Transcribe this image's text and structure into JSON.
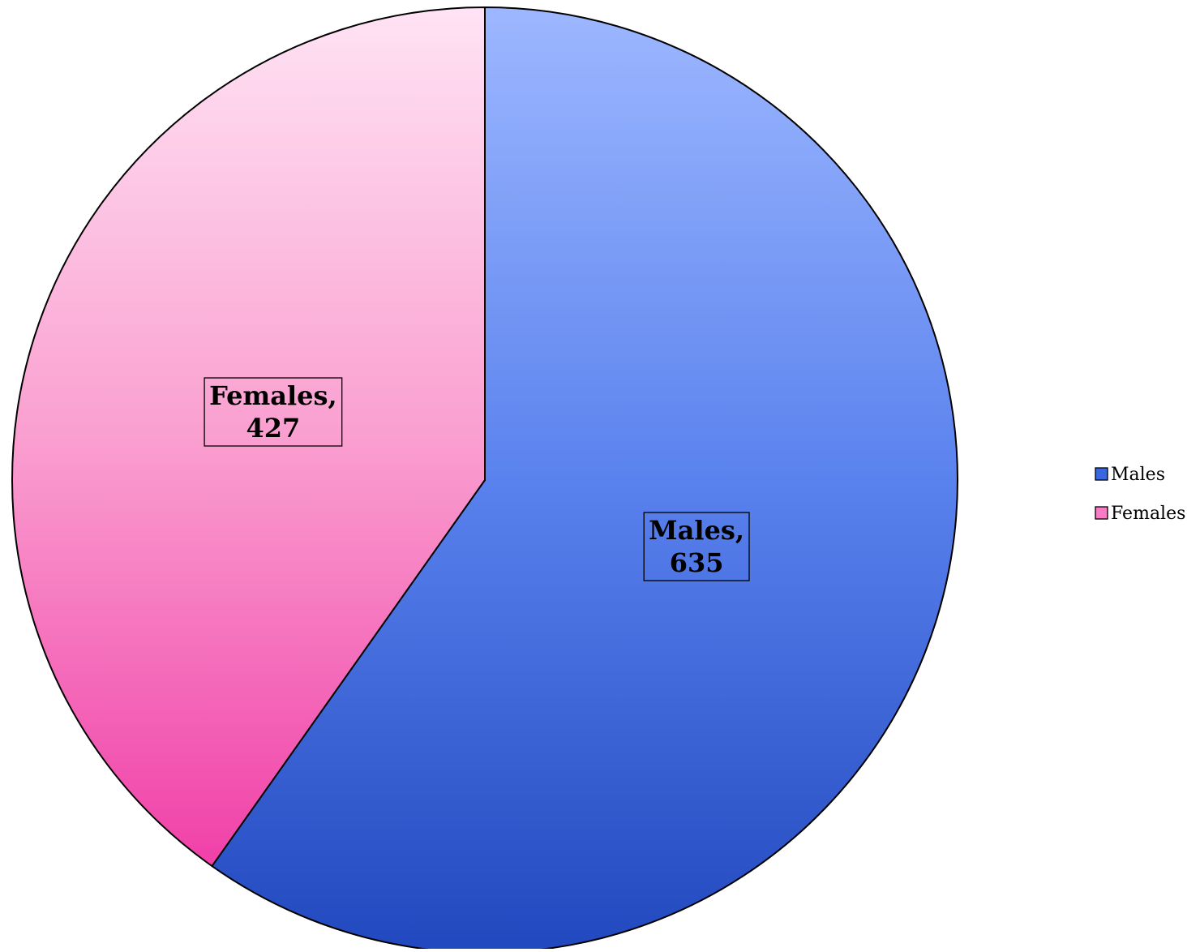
{
  "chart_data": {
    "type": "pie",
    "title": "",
    "categories": [
      "Males",
      "Females"
    ],
    "values": [
      635,
      427
    ],
    "colors": {
      "Males": {
        "light": "#9DB7FF",
        "mid": "#5A82EE",
        "dark": "#2148BE"
      },
      "Females": {
        "light": "#FFE3F4",
        "mid": "#FA9FD0",
        "dark": "#F040A8"
      }
    },
    "data_labels": [
      {
        "category": "Males",
        "line1": "Males,",
        "line2": "635"
      },
      {
        "category": "Females",
        "line1": "Females,",
        "line2": "427"
      }
    ],
    "legend": {
      "placement": "right",
      "items": [
        {
          "label": "Males",
          "color": "#3A66DE"
        },
        {
          "label": "Females",
          "color": "#F77CC4"
        }
      ]
    }
  }
}
